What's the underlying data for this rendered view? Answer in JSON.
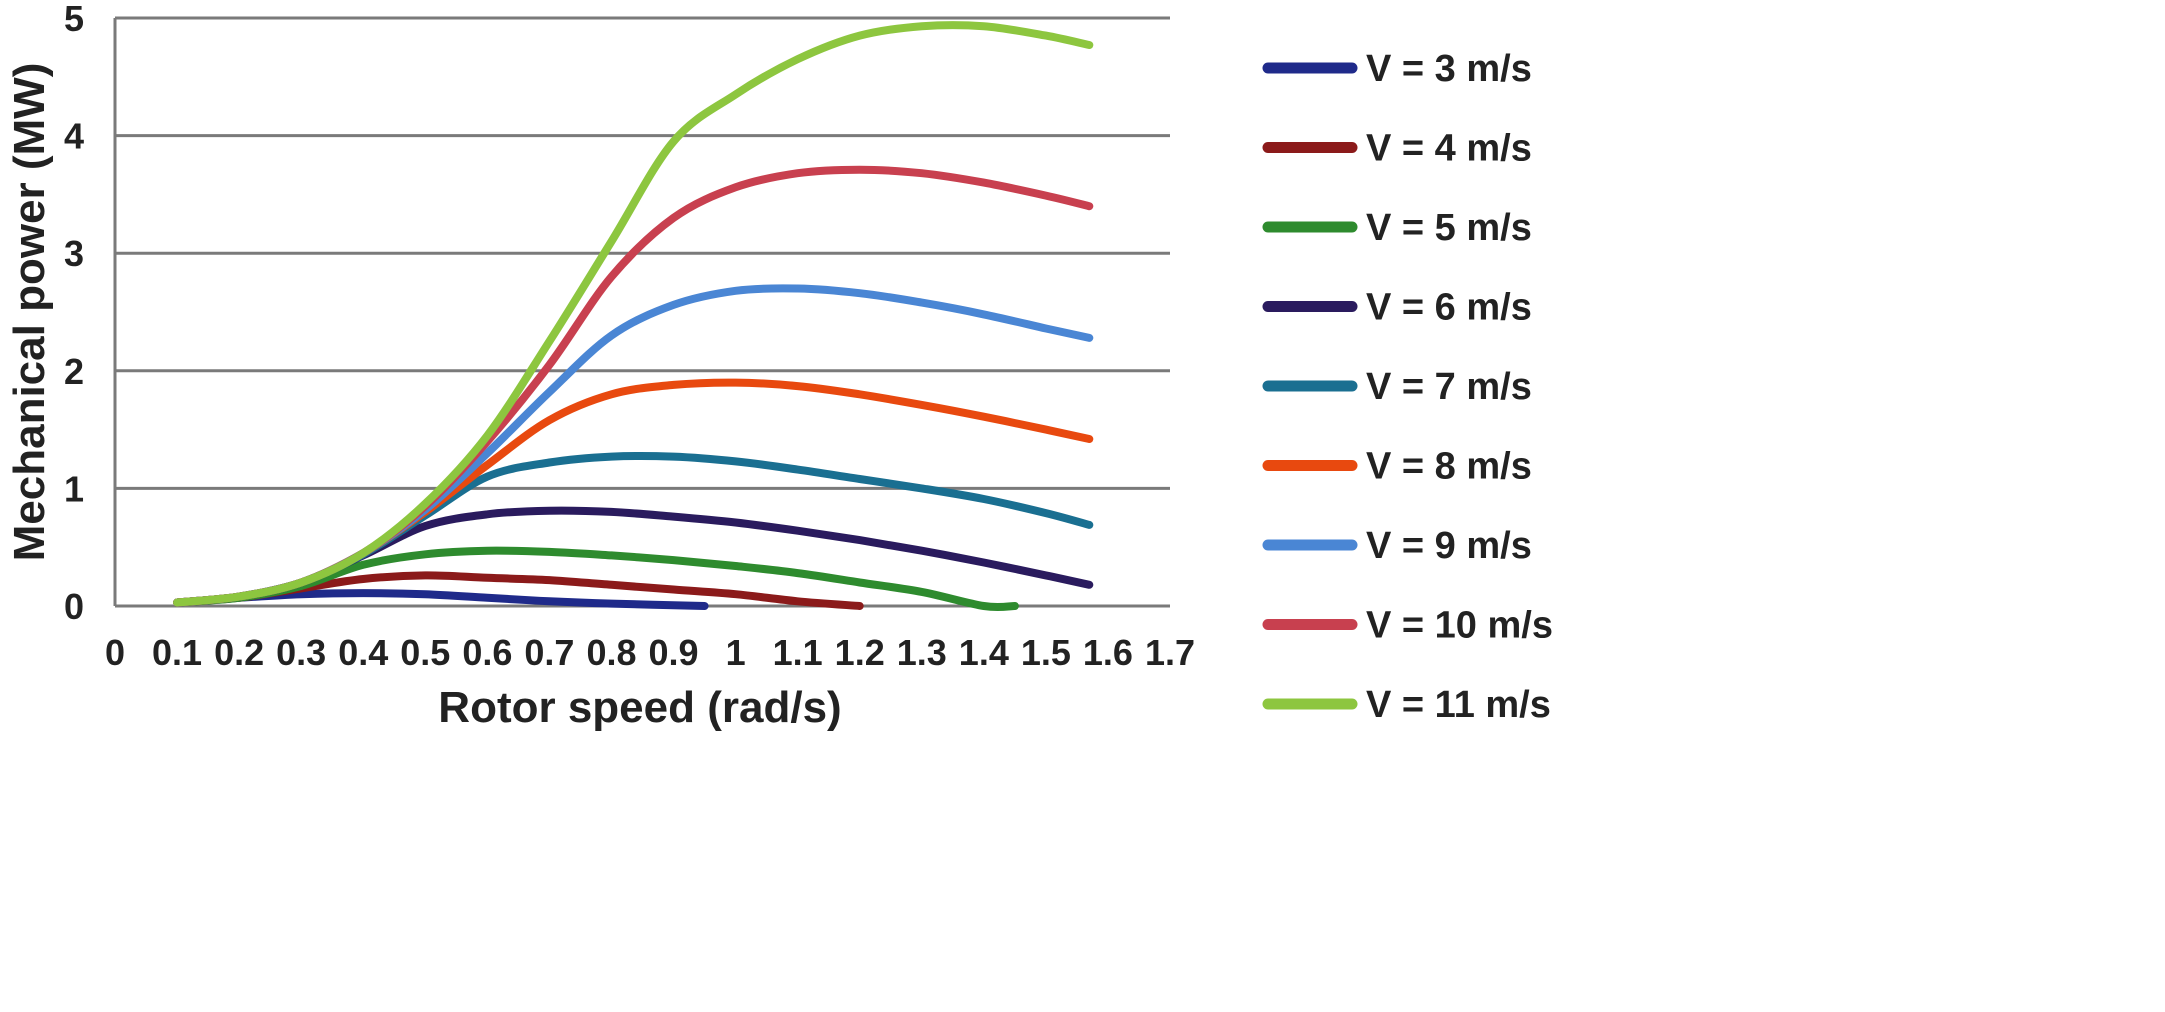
{
  "chart_data": {
    "type": "line",
    "title": "",
    "xlabel": "Rotor speed (rad/s)",
    "ylabel": "Mechanical power (MW)",
    "xlim": [
      0,
      1.7
    ],
    "ylim": [
      0,
      5
    ],
    "x_ticks": [
      "0",
      "0.1",
      "0.2",
      "0.3",
      "0.4",
      "0.5",
      "0.6",
      "0.7",
      "0.8",
      "0.9",
      "1",
      "1.1",
      "1.2",
      "1.3",
      "1.4",
      "1.5",
      "1.6",
      "1.7"
    ],
    "y_ticks": [
      "0",
      "1",
      "2",
      "3",
      "4",
      "5"
    ],
    "grid": "horizontal",
    "legend_position": "right",
    "series": [
      {
        "name": "V = 3 m/s",
        "color": "#1f2a8a",
        "x": [
          0.1,
          0.2,
          0.3,
          0.4,
          0.5,
          0.6,
          0.7,
          0.8,
          0.95
        ],
        "y": [
          0.03,
          0.07,
          0.1,
          0.11,
          0.1,
          0.07,
          0.04,
          0.02,
          0.0
        ]
      },
      {
        "name": "V = 4 m/s",
        "color": "#8b1a1a",
        "x": [
          0.1,
          0.2,
          0.3,
          0.4,
          0.5,
          0.6,
          0.7,
          0.8,
          0.9,
          1.0,
          1.1,
          1.2
        ],
        "y": [
          0.03,
          0.07,
          0.15,
          0.23,
          0.26,
          0.24,
          0.22,
          0.18,
          0.14,
          0.1,
          0.04,
          0.0
        ]
      },
      {
        "name": "V = 5 m/s",
        "color": "#2e8b2e",
        "x": [
          0.1,
          0.2,
          0.3,
          0.4,
          0.5,
          0.6,
          0.7,
          0.8,
          0.9,
          1.0,
          1.1,
          1.2,
          1.3,
          1.4,
          1.45
        ],
        "y": [
          0.03,
          0.07,
          0.17,
          0.35,
          0.44,
          0.47,
          0.46,
          0.43,
          0.39,
          0.34,
          0.28,
          0.2,
          0.12,
          0.0,
          0.0
        ]
      },
      {
        "name": "V = 6 m/s",
        "color": "#2a1b5e",
        "x": [
          0.1,
          0.2,
          0.3,
          0.4,
          0.5,
          0.6,
          0.7,
          0.8,
          0.9,
          1.0,
          1.1,
          1.2,
          1.3,
          1.4,
          1.5,
          1.57
        ],
        "y": [
          0.03,
          0.08,
          0.2,
          0.43,
          0.68,
          0.78,
          0.81,
          0.8,
          0.76,
          0.71,
          0.64,
          0.56,
          0.47,
          0.37,
          0.26,
          0.18
        ]
      },
      {
        "name": "V = 7 m/s",
        "color": "#1a6f91",
        "x": [
          0.1,
          0.2,
          0.3,
          0.4,
          0.5,
          0.6,
          0.7,
          0.8,
          0.9,
          1.0,
          1.1,
          1.2,
          1.3,
          1.4,
          1.5,
          1.57
        ],
        "y": [
          0.03,
          0.08,
          0.2,
          0.44,
          0.77,
          1.1,
          1.22,
          1.27,
          1.27,
          1.23,
          1.16,
          1.08,
          1.0,
          0.91,
          0.79,
          0.69
        ]
      },
      {
        "name": "V = 8 m/s",
        "color": "#e8490f",
        "x": [
          0.1,
          0.2,
          0.3,
          0.4,
          0.5,
          0.6,
          0.7,
          0.8,
          0.9,
          1.0,
          1.1,
          1.2,
          1.3,
          1.4,
          1.5,
          1.57
        ],
        "y": [
          0.03,
          0.08,
          0.2,
          0.45,
          0.8,
          1.2,
          1.58,
          1.8,
          1.88,
          1.9,
          1.87,
          1.8,
          1.71,
          1.61,
          1.5,
          1.42
        ]
      },
      {
        "name": "V = 9 m/s",
        "color": "#4a86d4",
        "x": [
          0.1,
          0.2,
          0.3,
          0.4,
          0.5,
          0.6,
          0.7,
          0.8,
          0.9,
          1.0,
          1.1,
          1.2,
          1.3,
          1.4,
          1.5,
          1.57
        ],
        "y": [
          0.03,
          0.08,
          0.2,
          0.45,
          0.82,
          1.3,
          1.82,
          2.3,
          2.56,
          2.68,
          2.7,
          2.66,
          2.58,
          2.48,
          2.36,
          2.28
        ]
      },
      {
        "name": "V = 10 m/s",
        "color": "#c8404f",
        "x": [
          0.1,
          0.2,
          0.3,
          0.4,
          0.5,
          0.6,
          0.7,
          0.8,
          0.9,
          1.0,
          1.1,
          1.2,
          1.3,
          1.4,
          1.5,
          1.57
        ],
        "y": [
          0.03,
          0.08,
          0.2,
          0.45,
          0.85,
          1.4,
          2.05,
          2.8,
          3.3,
          3.56,
          3.68,
          3.71,
          3.68,
          3.6,
          3.49,
          3.4
        ]
      },
      {
        "name": "V = 11 m/s",
        "color": "#8dc63f",
        "x": [
          0.1,
          0.2,
          0.3,
          0.4,
          0.5,
          0.6,
          0.7,
          0.8,
          0.9,
          1.0,
          1.1,
          1.2,
          1.3,
          1.4,
          1.5,
          1.57
        ],
        "y": [
          0.03,
          0.08,
          0.2,
          0.45,
          0.87,
          1.45,
          2.25,
          3.1,
          3.95,
          4.35,
          4.65,
          4.85,
          4.93,
          4.93,
          4.85,
          4.77
        ]
      }
    ]
  }
}
